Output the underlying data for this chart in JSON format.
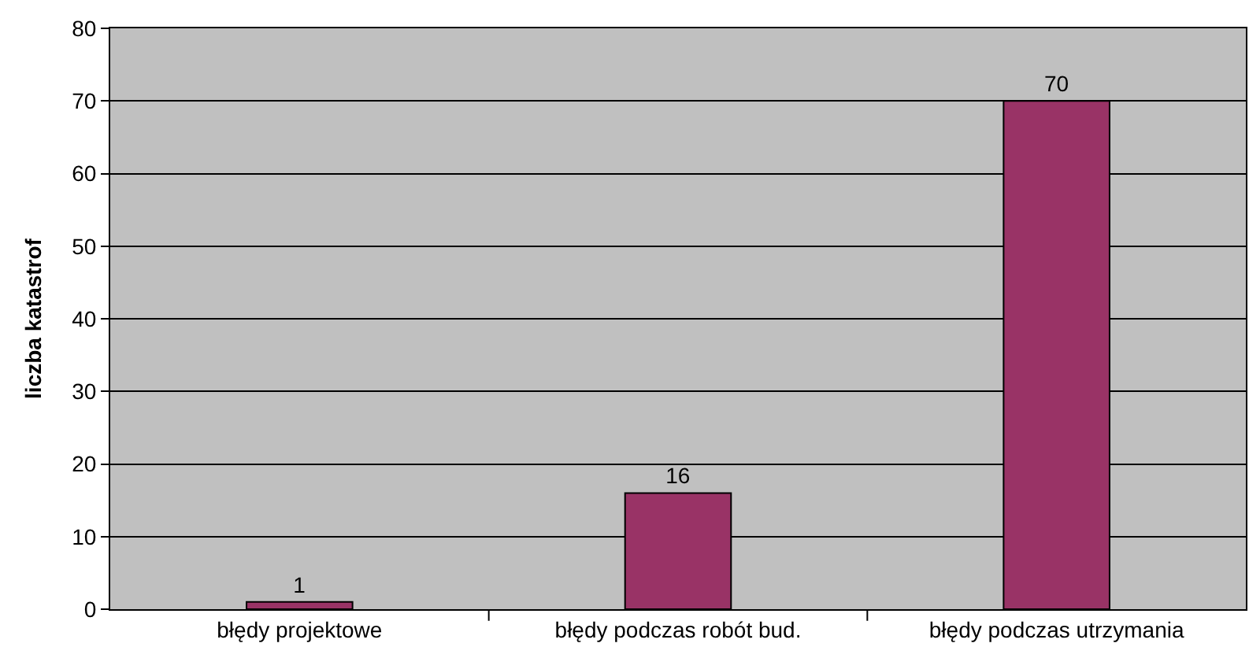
{
  "chart_data": {
    "type": "bar",
    "ylabel": "liczba katastrof",
    "categories": [
      "błędy projektowe",
      "błędy podczas robót bud.",
      "błędy podczas utrzymania"
    ],
    "values": [
      1,
      16,
      70
    ],
    "color": "#993366",
    "data_labels": true,
    "grid": "y",
    "ylim": [
      0,
      80
    ],
    "yticks": [
      0,
      10,
      20,
      30,
      40,
      50,
      60,
      70,
      80
    ]
  }
}
